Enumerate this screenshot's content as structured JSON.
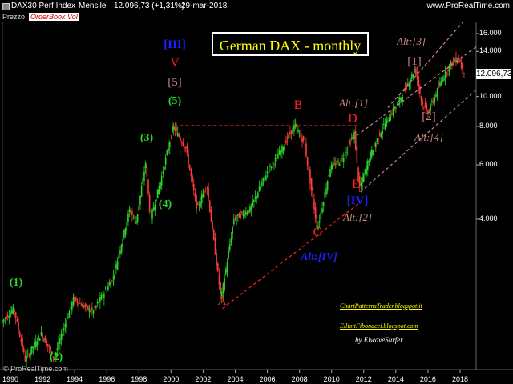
{
  "header": {
    "instrument": "DAX30 Perf Index",
    "period": "Mensile",
    "quote": "12.096,73 (+1,31%)",
    "date": "29-mar-2018",
    "site": "www.ProRealTime.com"
  },
  "panel": {
    "price_label": "Prezzo",
    "orderbook_label": "OrderBook Vol"
  },
  "footer": {
    "copyright": "© ProRealTime.com"
  },
  "title": "German DAX  - monthly",
  "last_price": "12.096,73",
  "colors": {
    "up": "#2bd42b",
    "down": "#ff3a3a",
    "accent": "#ff0000",
    "title": "#ffff00",
    "fib": "#c8857f"
  },
  "chart_data": {
    "type": "ohlc",
    "title": "German DAX  - monthly",
    "y_scale": "log",
    "y_ticks": [
      "4.000",
      "6.000",
      "8.000",
      "10.000",
      "14.000",
      "16.000"
    ],
    "y_tick_values": [
      4000,
      6000,
      8000,
      10000,
      14000,
      16000
    ],
    "x_ticks": [
      "1990",
      "1992",
      "1994",
      "1996",
      "1998",
      "2000",
      "2002",
      "2004",
      "2006",
      "2008",
      "2010",
      "2012",
      "2014",
      "2016",
      "2018"
    ],
    "ylim": [
      1300,
      17500
    ],
    "xlim": [
      1989.5,
      2019.0
    ],
    "key_points": [
      {
        "x": 1989.5,
        "y": 1850
      },
      {
        "x": 1990.3,
        "y": 2050
      },
      {
        "x": 1991.0,
        "y": 1400
      },
      {
        "x": 1992.0,
        "y": 1700
      },
      {
        "x": 1992.8,
        "y": 1420
      },
      {
        "x": 1994.0,
        "y": 2200
      },
      {
        "x": 1995.2,
        "y": 2000
      },
      {
        "x": 1996.5,
        "y": 2600
      },
      {
        "x": 1997.5,
        "y": 4300
      },
      {
        "x": 1997.9,
        "y": 3900
      },
      {
        "x": 1998.5,
        "y": 6100
      },
      {
        "x": 1998.8,
        "y": 4000
      },
      {
        "x": 1999.5,
        "y": 5500
      },
      {
        "x": 2000.2,
        "y": 8000
      },
      {
        "x": 2001.0,
        "y": 6800
      },
      {
        "x": 2001.7,
        "y": 4300
      },
      {
        "x": 2002.3,
        "y": 5200
      },
      {
        "x": 2003.2,
        "y": 2200
      },
      {
        "x": 2004.0,
        "y": 4000
      },
      {
        "x": 2005.0,
        "y": 4300
      },
      {
        "x": 2006.0,
        "y": 5600
      },
      {
        "x": 2007.0,
        "y": 6800
      },
      {
        "x": 2007.8,
        "y": 8100
      },
      {
        "x": 2008.4,
        "y": 7000
      },
      {
        "x": 2009.2,
        "y": 3700
      },
      {
        "x": 2010.0,
        "y": 5900
      },
      {
        "x": 2010.7,
        "y": 6200
      },
      {
        "x": 2011.5,
        "y": 7600
      },
      {
        "x": 2011.8,
        "y": 5000
      },
      {
        "x": 2012.5,
        "y": 6500
      },
      {
        "x": 2013.3,
        "y": 8000
      },
      {
        "x": 2014.3,
        "y": 9700
      },
      {
        "x": 2015.3,
        "y": 12300
      },
      {
        "x": 2015.7,
        "y": 9500
      },
      {
        "x": 2016.1,
        "y": 8900
      },
      {
        "x": 2017.0,
        "y": 11500
      },
      {
        "x": 2017.5,
        "y": 12800
      },
      {
        "x": 2018.0,
        "y": 13300
      },
      {
        "x": 2018.25,
        "y": 12100
      }
    ],
    "annotations": [
      {
        "text": "[III]",
        "color": "#2020ff",
        "size": 15
      },
      {
        "text": "V",
        "color": "#ff2020",
        "size": 15
      },
      {
        "text": "[5]",
        "color": "#c8857f",
        "size": 15
      },
      {
        "text": "(5)",
        "color": "#2bd42b",
        "size": 14
      },
      {
        "text": "(3)",
        "color": "#2bd42b",
        "size": 14
      },
      {
        "text": "(4)",
        "color": "#2bd42b",
        "size": 14
      },
      {
        "text": "(1)",
        "color": "#2bd42b",
        "size": 14
      },
      {
        "text": "(2)",
        "color": "#2bd42b",
        "size": 14
      },
      {
        "text": "A",
        "color": "#ff2020",
        "size": 16
      },
      {
        "text": "B",
        "color": "#ff2020",
        "size": 16
      },
      {
        "text": "C",
        "color": "#ff2020",
        "size": 16
      },
      {
        "text": "D",
        "color": "#ff2020",
        "size": 16
      },
      {
        "text": "E",
        "color": "#ff2020",
        "size": 16
      },
      {
        "text": "[IV]",
        "color": "#2020ff",
        "size": 15
      },
      {
        "text": "Alt:[IV]",
        "color": "#2020ff",
        "size": 14,
        "italic": true
      },
      {
        "text": "Alt:[1]",
        "color": "#c8857f",
        "size": 13,
        "italic": true
      },
      {
        "text": "Alt:[2]",
        "color": "#c8857f",
        "size": 13,
        "italic": true
      },
      {
        "text": "Alt:[3]",
        "color": "#c8857f",
        "size": 13,
        "italic": true
      },
      {
        "text": "Alt:[4]",
        "color": "#c8857f",
        "size": 13,
        "italic": true
      },
      {
        "text": "[1]",
        "color": "#c8857f",
        "size": 15
      },
      {
        "text": "[2]",
        "color": "#c8857f",
        "size": 15
      }
    ]
  },
  "credits": {
    "line1": "ChartPatternsTrader.blogspot.it",
    "line2": "ElliottFibonacci.blogspot.com",
    "byline": "by  ElwaveSurfer"
  }
}
